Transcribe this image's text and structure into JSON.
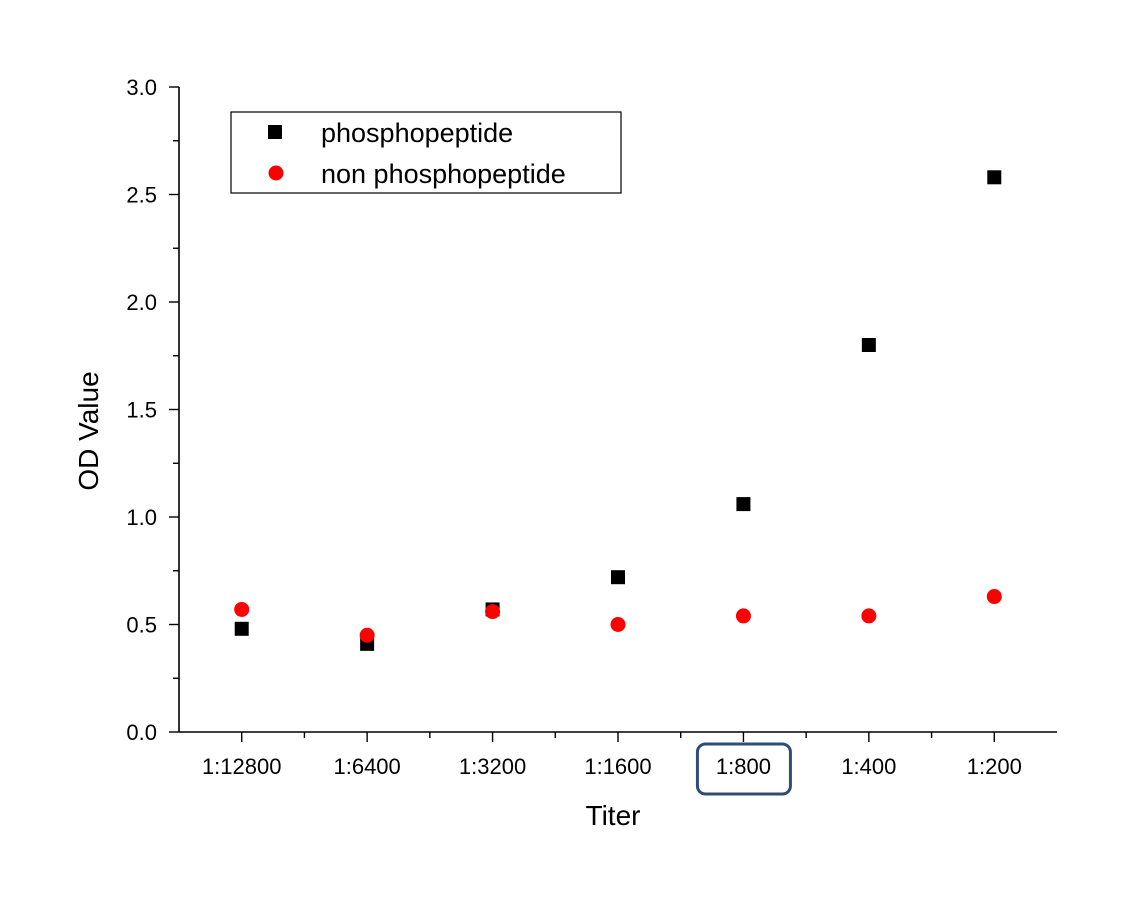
{
  "chart_data": {
    "type": "scatter",
    "title": "",
    "xlabel": "Titer",
    "ylabel": "OD Value",
    "categories": [
      "1:12800",
      "1:6400",
      "1:3200",
      "1:1600",
      "1:800",
      "1:400",
      "1:200"
    ],
    "highlighted_category": "1:800",
    "highlight_color": "#2f4d72",
    "ylim": [
      0,
      3.0
    ],
    "yticks": [
      "0.0",
      "0.5",
      "1.0",
      "1.5",
      "2.0",
      "2.5",
      "3.0"
    ],
    "grid": false,
    "legend_position": "top-left",
    "series": [
      {
        "name": "phosphopeptide",
        "marker": "square",
        "color": "#000000",
        "values": [
          0.48,
          0.41,
          0.57,
          0.72,
          1.06,
          1.8,
          2.58
        ]
      },
      {
        "name": "non phosphopeptide",
        "marker": "circle",
        "color": "#ff0000",
        "values": [
          0.57,
          0.45,
          0.56,
          0.5,
          0.54,
          0.54,
          0.63
        ]
      }
    ]
  }
}
